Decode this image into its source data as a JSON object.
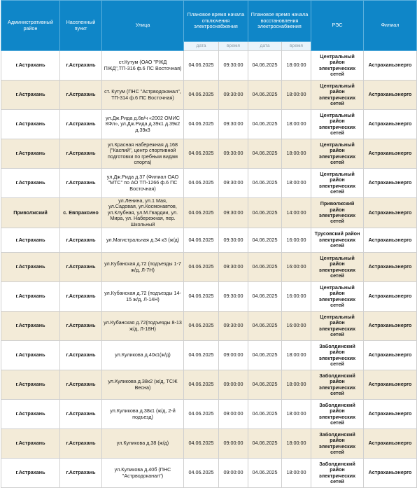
{
  "headers": {
    "district": "Административный район",
    "locality": "Населенный пункт",
    "street": "Улица",
    "off_time": "Плановое время начала отключения электроснабжения",
    "on_time": "Плановое время начала восстановления электроснабжения",
    "res": "РЭС",
    "branch": "Филиал",
    "date": "дата",
    "time": "время"
  },
  "rows": [
    {
      "district": "г.Астрахань",
      "locality": "г.Астрахань",
      "street": "ст.Кутум (ОАО \"РЖД ПЖД\",ТП-316 ф.6 ПС Восточная)",
      "off_date": "04.06.2025",
      "off_time": "09:30:00",
      "on_date": "04.06.2025",
      "on_time": "18:00:00",
      "res": "Центральный район электрических сетей",
      "branch": "Астраханьэнерго"
    },
    {
      "district": "г.Астрахань",
      "locality": "г.Астрахань",
      "street": "ст. Кутум (ПНС \"Астрводоканал\", ТП-314 ф.6 ПС Восточная)",
      "off_date": "04.06.2025",
      "off_time": "09:30:00",
      "on_date": "04.06.2025",
      "on_time": "18:00:00",
      "res": "Центральный район электрических сетей",
      "branch": "Астраханьэнерго"
    },
    {
      "district": "г.Астрахань",
      "locality": "г.Астрахань",
      "street": "ул.Дж.Рида д.6в/ч «2002 ОМИС КФл», ул.Дж.Рида д.39к1 д.39к2 д.39к3",
      "off_date": "04.06.2025",
      "off_time": "09:30:00",
      "on_date": "04.06.2025",
      "on_time": "18:00:00",
      "res": "Центральный район электрических сетей",
      "branch": "Астраханьэнерго"
    },
    {
      "district": "г.Астрахань",
      "locality": "г.Астрахань",
      "street": "ул.Красная набережная д.168 (\"Каспий\", центр спортивной подготовки по гребным видам спорта)",
      "off_date": "04.06.2025",
      "off_time": "09:30:00",
      "on_date": "04.06.2025",
      "on_time": "18:00:00",
      "res": "Центральный район электрических сетей",
      "branch": "Астраханьэнерго"
    },
    {
      "district": "г.Астрахань",
      "locality": "г.Астрахань",
      "street": "ул.Дж.Рида д.37 (Филиал ОАО \"МТС\" по АО ТП-1266 ф.6 ПС Восточная)",
      "off_date": "04.06.2025",
      "off_time": "09:30:00",
      "on_date": "04.06.2025",
      "on_time": "18:00:00",
      "res": "Центральный район электрических сетей",
      "branch": "Астраханьэнерго"
    },
    {
      "district": "Приволжский",
      "locality": "с. Евпраксино",
      "street": "ул.Ленина, ул.1 Мая, ул.Садовая, ул.Космонавтов, ул.Клубная, ул.М.Гвардии, ул. Мира, ул. Набережная, пер. Школьный",
      "off_date": "04.06.2025",
      "off_time": "09:30:00",
      "on_date": "04.06.2025",
      "on_time": "14:00:00",
      "res": "Приволжский район электрических сетей",
      "branch": "Астраханьэнерго"
    },
    {
      "district": "г.Астрахань",
      "locality": "г.Астрахань",
      "street": "ул.Магистральная д.34 к3 (ж/д)",
      "off_date": "04.06.2025",
      "off_time": "09:30:00",
      "on_date": "04.06.2025",
      "on_time": "16:00:00",
      "res": "Трусовский район электрических сетей",
      "branch": "Астраханьэнерго"
    },
    {
      "district": "г.Астрахань",
      "locality": "г.Астрахань",
      "street": "ул.Кубанская д.72 (подъезды 1-7 ж/д, Л-7Н)",
      "off_date": "04.06.2025",
      "off_time": "09:30:00",
      "on_date": "04.06.2025",
      "on_time": "16:00:00",
      "res": "Центральный район электрических сетей",
      "branch": "Астраханьэнерго"
    },
    {
      "district": "г.Астрахань",
      "locality": "г.Астрахань",
      "street": "ул.Кубанская д.72 (подъезды 14-15 ж/д, Л-14Н)",
      "off_date": "04.06.2025",
      "off_time": "09:30:00",
      "on_date": "04.06.2025",
      "on_time": "16:00:00",
      "res": "Центральный район электрических сетей",
      "branch": "Астраханьэнерго"
    },
    {
      "district": "г.Астрахань",
      "locality": "г.Астрахань",
      "street": "ул.Кубанская д.72(подъезды 8-13 ж/д, Л-18Н)",
      "off_date": "04.06.2025",
      "off_time": "09:30:00",
      "on_date": "04.06.2025",
      "on_time": "16:00:00",
      "res": "Центральный район электрических сетей",
      "branch": "Астраханьэнерго"
    },
    {
      "district": "г.Астрахань",
      "locality": "г.Астрахань",
      "street": "ул.Куликова д.40к1(ж/д)",
      "off_date": "04.06.2025",
      "off_time": "09:00:00",
      "on_date": "04.06.2025",
      "on_time": "18:00:00",
      "res": "Заболдинский район электрических сетей",
      "branch": "Астраханьэнерго"
    },
    {
      "district": "г.Астрахань",
      "locality": "г.Астрахань",
      "street": "ул.Куликова д.38к2 (ж/д, ТСЖ Весна)",
      "off_date": "04.06.2025",
      "off_time": "09:00:00",
      "on_date": "04.06.2025",
      "on_time": "18:00:00",
      "res": "Заболдинский район электрических сетей",
      "branch": "Астраханьэнерго"
    },
    {
      "district": "г.Астрахань",
      "locality": "г.Астрахань",
      "street": "ул.Куликова д.38к1 (ж/д, 2-й подъезд)",
      "off_date": "04.06.2025",
      "off_time": "09:00:00",
      "on_date": "04.06.2025",
      "on_time": "18:00:00",
      "res": "Заболдинский район электрических сетей",
      "branch": "Астраханьэнерго"
    },
    {
      "district": "г.Астрахань",
      "locality": "г.Астрахань",
      "street": "ул.Куликова д.38 (ж/д)",
      "off_date": "04.06.2025",
      "off_time": "09:00:00",
      "on_date": "04.06.2025",
      "on_time": "18:00:00",
      "res": "Заболдинский район электрических сетей",
      "branch": "Астраханьэнерго"
    },
    {
      "district": "г.Астрахань",
      "locality": "г.Астрахань",
      "street": "ул.Куликова д.40б (ПНС \"Астрводоканал\")",
      "off_date": "04.06.2025",
      "off_time": "09:00:00",
      "on_date": "04.06.2025",
      "on_time": "18:00:00",
      "res": "Заболдинский район электрических сетей",
      "branch": "Астраханьэнерго"
    }
  ]
}
